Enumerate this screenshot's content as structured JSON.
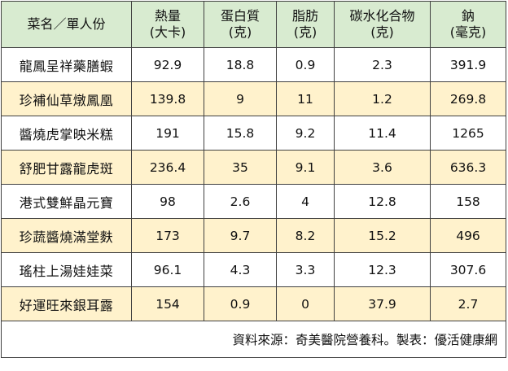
{
  "headers": [
    {
      "line1": "菜名／單人份",
      "line2": ""
    },
    {
      "line1": "熱量",
      "line2": "(大卡)"
    },
    {
      "line1": "蛋白質",
      "line2": "(克)"
    },
    {
      "line1": "脂肪",
      "line2": "(克)"
    },
    {
      "line1": "碳水化合物",
      "line2": "(克)"
    },
    {
      "line1": "鈉",
      "line2": "(毫克)"
    }
  ],
  "rows": [
    {
      "dish": "龍鳳呈祥藥膳蝦",
      "calories": "92.9",
      "protein": "18.8",
      "fat": "0.9",
      "carbs": "2.3",
      "sodium": "391.9"
    },
    {
      "dish": "珍補仙草燉鳳凰",
      "calories": "139.8",
      "protein": "9",
      "fat": "11",
      "carbs": "1.2",
      "sodium": "269.8"
    },
    {
      "dish": "醬燒虎掌映米糕",
      "calories": "191",
      "protein": "15.8",
      "fat": "9.2",
      "carbs": "11.4",
      "sodium": "1265"
    },
    {
      "dish": "舒肥甘露龍虎斑",
      "calories": "236.4",
      "protein": "35",
      "fat": "9.1",
      "carbs": "3.6",
      "sodium": "636.3"
    },
    {
      "dish": "港式雙鮮晶元寶",
      "calories": "98",
      "protein": "2.6",
      "fat": "4",
      "carbs": "12.8",
      "sodium": "158"
    },
    {
      "dish": "珍蔬醬燒滿堂麩",
      "calories": "173",
      "protein": "9.7",
      "fat": "8.2",
      "carbs": "15.2",
      "sodium": "496"
    },
    {
      "dish": "瑤柱上湯娃娃菜",
      "calories": "96.1",
      "protein": "4.3",
      "fat": "3.3",
      "carbs": "12.3",
      "sodium": "307.6"
    },
    {
      "dish": "好運旺來銀耳露",
      "calories": "154",
      "protein": "0.9",
      "fat": "0",
      "carbs": "37.9",
      "sodium": "2.7"
    }
  ],
  "footer": "資料來源：奇美醫院營養科。製表：優活健康網",
  "colors": {
    "header_bg": "#d8ebd0",
    "stripe_bg": "#fff2cc",
    "border": "#404040"
  }
}
